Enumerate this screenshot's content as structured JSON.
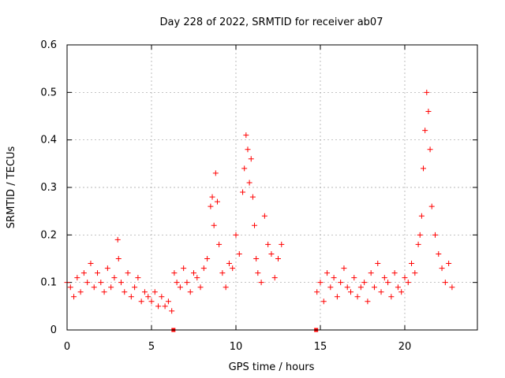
{
  "chart_data": {
    "type": "scatter",
    "title": "Day 228 of 2022, SRMTID for receiver ab07",
    "xlabel": "GPS time / hours",
    "ylabel": "SRMTID / TECUs",
    "xlim": [
      0,
      24.3
    ],
    "ylim": [
      0,
      0.6
    ],
    "x_ticks": [
      0,
      5,
      10,
      15,
      20
    ],
    "x_tick_labels": [
      "0",
      "5",
      "10",
      "15",
      "20"
    ],
    "y_ticks": [
      0,
      0.1,
      0.2,
      0.3,
      0.4,
      0.5,
      0.6
    ],
    "y_tick_labels": [
      "0",
      "0.1",
      "0.2",
      "0.3",
      "0.4",
      "0.5",
      "0.6"
    ],
    "grid": true,
    "marker": "+",
    "marker_color": "#ff0000",
    "zero_markers": {
      "marker": "square",
      "x": [
        6.3,
        14.75
      ],
      "y": [
        0,
        0
      ]
    },
    "series": [
      {
        "name": "SRMTID",
        "x": [
          0.0,
          0.2,
          0.4,
          0.6,
          0.8,
          1.0,
          1.2,
          1.4,
          1.6,
          1.8,
          2.0,
          2.2,
          2.4,
          2.6,
          2.8,
          3.0,
          3.05,
          3.2,
          3.4,
          3.6,
          3.8,
          4.0,
          4.2,
          4.4,
          4.6,
          4.8,
          5.0,
          5.2,
          5.4,
          5.6,
          5.8,
          6.0,
          6.2,
          6.35,
          6.5,
          6.7,
          6.9,
          7.1,
          7.3,
          7.5,
          7.7,
          7.9,
          8.1,
          8.3,
          8.5,
          8.6,
          8.7,
          8.8,
          8.9,
          9.0,
          9.2,
          9.4,
          9.6,
          9.8,
          10.0,
          10.2,
          10.4,
          10.5,
          10.6,
          10.7,
          10.8,
          10.9,
          11.0,
          11.1,
          11.2,
          11.3,
          11.5,
          11.7,
          11.9,
          12.1,
          12.3,
          12.5,
          12.7,
          14.8,
          15.0,
          15.2,
          15.4,
          15.6,
          15.8,
          16.0,
          16.2,
          16.4,
          16.6,
          16.8,
          17.0,
          17.2,
          17.4,
          17.6,
          17.8,
          18.0,
          18.2,
          18.4,
          18.6,
          18.8,
          19.0,
          19.2,
          19.4,
          19.6,
          19.8,
          20.0,
          20.2,
          20.4,
          20.6,
          20.8,
          20.9,
          21.0,
          21.1,
          21.2,
          21.3,
          21.4,
          21.5,
          21.6,
          21.8,
          22.0,
          22.2,
          22.4,
          22.6,
          22.8
        ],
        "y": [
          0.1,
          0.09,
          0.07,
          0.11,
          0.08,
          0.12,
          0.1,
          0.14,
          0.09,
          0.12,
          0.1,
          0.08,
          0.13,
          0.09,
          0.11,
          0.19,
          0.15,
          0.1,
          0.08,
          0.12,
          0.07,
          0.09,
          0.11,
          0.06,
          0.08,
          0.07,
          0.06,
          0.08,
          0.05,
          0.07,
          0.05,
          0.06,
          0.04,
          0.12,
          0.1,
          0.09,
          0.13,
          0.1,
          0.08,
          0.12,
          0.11,
          0.09,
          0.13,
          0.15,
          0.26,
          0.28,
          0.22,
          0.33,
          0.27,
          0.18,
          0.12,
          0.09,
          0.14,
          0.13,
          0.2,
          0.16,
          0.29,
          0.34,
          0.41,
          0.38,
          0.31,
          0.36,
          0.28,
          0.22,
          0.15,
          0.12,
          0.1,
          0.24,
          0.18,
          0.16,
          0.11,
          0.15,
          0.18,
          0.08,
          0.1,
          0.06,
          0.12,
          0.09,
          0.11,
          0.07,
          0.1,
          0.13,
          0.09,
          0.08,
          0.11,
          0.07,
          0.09,
          0.1,
          0.06,
          0.12,
          0.09,
          0.14,
          0.08,
          0.11,
          0.1,
          0.07,
          0.12,
          0.09,
          0.08,
          0.11,
          0.1,
          0.14,
          0.12,
          0.18,
          0.2,
          0.24,
          0.34,
          0.42,
          0.5,
          0.46,
          0.38,
          0.26,
          0.2,
          0.16,
          0.13,
          0.1,
          0.14,
          0.09
        ]
      }
    ]
  }
}
